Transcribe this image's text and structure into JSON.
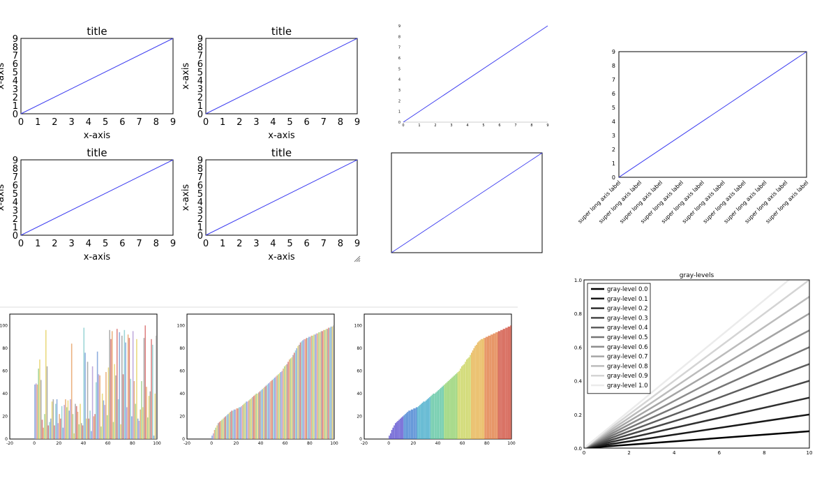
{
  "colors": {
    "line": "#3c3cf0",
    "frame": "#000000",
    "separator": "#dddddd",
    "bar_palette": [
      "#7aa0d8",
      "#9ccf8c",
      "#d86f6f",
      "#b59bd6",
      "#e6d36a",
      "#8ccfd0",
      "#e7a46b",
      "#a0a0a0"
    ],
    "spectral": [
      "#5a4fcf",
      "#3f7fd0",
      "#3fa9c9",
      "#5bc4a0",
      "#8fd06a",
      "#c9d45a",
      "#e6b24a",
      "#e07a3f",
      "#cf4b3a"
    ]
  },
  "grid_panel": {
    "titles": [
      "title",
      "title",
      "title",
      "title"
    ],
    "xlabel": "x-axis",
    "ylabel": "x-axis",
    "ticks": [
      "0",
      "1",
      "2",
      "3",
      "4",
      "5",
      "6",
      "7",
      "8",
      "9"
    ]
  },
  "axis_label": "super long axis label",
  "bar_axis": {
    "xticks": [
      "-20",
      "0",
      "20",
      "40",
      "60",
      "80",
      "100"
    ],
    "yticks": [
      "0",
      "20",
      "40",
      "60",
      "80",
      "100"
    ]
  },
  "gray_panel": {
    "title": "gray-levels",
    "xticks": [
      "0",
      "2",
      "4",
      "6",
      "8",
      "10"
    ],
    "yticks": [
      "0.0",
      "0.2",
      "0.4",
      "0.6",
      "0.8",
      "1.0"
    ],
    "legend": [
      "gray-level 0.0",
      "gray-level 0.1",
      "gray-level 0.2",
      "gray-level 0.3",
      "gray-level 0.4",
      "gray-level 0.5",
      "gray-level 0.6",
      "gray-level 0.7",
      "gray-level 0.8",
      "gray-level 0.9",
      "gray-level 1.0"
    ]
  },
  "chart_data": [
    {
      "type": "line",
      "title": "title",
      "xlabel": "x-axis",
      "ylabel": "x-axis",
      "x": [
        0,
        9
      ],
      "y": [
        0,
        9
      ],
      "xlim": [
        0,
        9
      ],
      "ylim": [
        0,
        9
      ]
    },
    {
      "type": "line",
      "title": "title",
      "xlabel": "x-axis",
      "ylabel": "x-axis",
      "x": [
        0,
        9
      ],
      "y": [
        0,
        9
      ],
      "xlim": [
        0,
        9
      ],
      "ylim": [
        0,
        9
      ]
    },
    {
      "type": "line",
      "title": "title",
      "xlabel": "x-axis",
      "ylabel": "x-axis",
      "x": [
        0,
        9
      ],
      "y": [
        0,
        9
      ],
      "xlim": [
        0,
        9
      ],
      "ylim": [
        0,
        9
      ]
    },
    {
      "type": "line",
      "title": "title",
      "xlabel": "x-axis",
      "ylabel": "x-axis",
      "x": [
        0,
        9
      ],
      "y": [
        0,
        9
      ],
      "xlim": [
        0,
        9
      ],
      "ylim": [
        0,
        9
      ]
    },
    {
      "type": "line",
      "x": [
        0,
        9
      ],
      "y": [
        0,
        9
      ],
      "xlim": [
        0,
        9
      ],
      "ylim": [
        0,
        9
      ],
      "xticks": [
        "0",
        "1",
        "2",
        "3",
        "4",
        "5",
        "6",
        "7",
        "8",
        "9"
      ],
      "yticks": [
        "0",
        "1",
        "2",
        "3",
        "4",
        "5",
        "6",
        "7",
        "8",
        "9"
      ]
    },
    {
      "type": "line",
      "x": [
        0,
        9
      ],
      "y": [
        0,
        9
      ],
      "xlim": [
        0,
        9
      ],
      "ylim": [
        0,
        9
      ],
      "axes_visible": false
    },
    {
      "type": "line",
      "x": [
        0,
        9
      ],
      "y": [
        0,
        9
      ],
      "xlim": [
        0,
        9
      ],
      "ylim": [
        0,
        9
      ],
      "yticks": [
        "0",
        "1",
        "2",
        "3",
        "4",
        "5",
        "6",
        "7",
        "8",
        "9"
      ],
      "xtick_labels": [
        "super long axis label",
        "super long axis label",
        "super long axis label",
        "super long axis label",
        "super long axis label",
        "super long axis label",
        "super long axis label",
        "super long axis label",
        "super long axis label",
        "super long axis label"
      ]
    },
    {
      "type": "bar",
      "xlim": [
        -20,
        100
      ],
      "ylim": [
        0,
        110
      ],
      "x_start": 0,
      "x_step": 1,
      "coloring": "palette",
      "values": [
        48,
        49,
        48,
        62,
        70,
        52,
        17,
        10,
        22,
        96,
        64,
        12,
        15,
        18,
        33,
        35,
        12,
        31,
        35,
        14,
        22,
        18,
        29,
        10,
        30,
        35,
        28,
        34,
        25,
        35,
        84,
        22,
        5,
        31,
        29,
        24,
        13,
        31,
        14,
        12,
        98,
        76,
        18,
        68,
        18,
        25,
        7,
        64,
        20,
        22,
        50,
        77,
        57,
        56,
        11,
        40,
        34,
        30,
        59,
        21,
        63,
        96,
        88,
        95,
        15,
        66,
        56,
        97,
        35,
        94,
        13,
        91,
        57,
        96,
        85,
        28,
        92,
        89,
        53,
        20,
        95,
        51,
        31,
        88,
        18,
        16,
        26,
        51,
        28,
        89,
        100,
        46,
        19,
        38,
        42,
        88,
        83,
        3,
        40,
        91
      ]
    },
    {
      "type": "bar",
      "xlim": [
        -20,
        100
      ],
      "ylim": [
        0,
        110
      ],
      "x_start": 0,
      "x_step": 1,
      "coloring": "palette",
      "values": [
        3,
        5,
        8,
        10,
        12,
        14,
        15,
        16,
        17,
        18,
        19,
        20,
        21,
        22,
        23,
        24,
        25,
        25,
        26,
        26,
        27,
        27,
        28,
        28,
        29,
        30,
        31,
        32,
        33,
        33,
        34,
        35,
        36,
        37,
        38,
        39,
        40,
        40,
        41,
        42,
        43,
        44,
        45,
        46,
        47,
        48,
        49,
        50,
        51,
        52,
        53,
        54,
        55,
        56,
        57,
        58,
        59,
        60,
        62,
        64,
        65,
        66,
        68,
        70,
        71,
        72,
        74,
        76,
        78,
        80,
        82,
        83,
        85,
        86,
        87,
        88,
        88,
        89,
        89,
        90,
        90,
        91,
        91,
        92,
        92,
        93,
        93,
        94,
        94,
        95,
        95,
        96,
        96,
        97,
        97,
        98,
        98,
        99,
        99,
        100
      ]
    },
    {
      "type": "bar",
      "xlim": [
        -20,
        100
      ],
      "ylim": [
        0,
        110
      ],
      "x_start": 0,
      "x_step": 1,
      "coloring": "spectral",
      "values": [
        3,
        5,
        8,
        10,
        12,
        14,
        15,
        16,
        17,
        18,
        19,
        20,
        21,
        22,
        23,
        24,
        25,
        25,
        26,
        26,
        27,
        27,
        28,
        28,
        29,
        30,
        31,
        32,
        33,
        33,
        34,
        35,
        36,
        37,
        38,
        39,
        40,
        40,
        41,
        42,
        43,
        44,
        45,
        46,
        47,
        48,
        49,
        50,
        51,
        52,
        53,
        54,
        55,
        56,
        57,
        58,
        59,
        60,
        62,
        64,
        65,
        66,
        68,
        70,
        71,
        72,
        74,
        76,
        78,
        80,
        82,
        83,
        85,
        86,
        87,
        88,
        88,
        89,
        89,
        90,
        90,
        91,
        91,
        92,
        92,
        93,
        93,
        94,
        94,
        95,
        95,
        96,
        96,
        97,
        97,
        98,
        98,
        99,
        99,
        100
      ]
    },
    {
      "type": "line",
      "title": "gray-levels",
      "xlim": [
        0,
        10
      ],
      "ylim": [
        0,
        1
      ],
      "legend_position": "top-left",
      "series": [
        {
          "name": "gray-level 0.0",
          "gray": 0.0,
          "x": [
            0,
            10
          ],
          "y": [
            0,
            0.1
          ]
        },
        {
          "name": "gray-level 0.1",
          "gray": 0.1,
          "x": [
            0,
            10
          ],
          "y": [
            0,
            0.2
          ]
        },
        {
          "name": "gray-level 0.2",
          "gray": 0.2,
          "x": [
            0,
            10
          ],
          "y": [
            0,
            0.3
          ]
        },
        {
          "name": "gray-level 0.3",
          "gray": 0.3,
          "x": [
            0,
            10
          ],
          "y": [
            0,
            0.4
          ]
        },
        {
          "name": "gray-level 0.4",
          "gray": 0.4,
          "x": [
            0,
            10
          ],
          "y": [
            0,
            0.5
          ]
        },
        {
          "name": "gray-level 0.5",
          "gray": 0.5,
          "x": [
            0,
            10
          ],
          "y": [
            0,
            0.6
          ]
        },
        {
          "name": "gray-level 0.6",
          "gray": 0.6,
          "x": [
            0,
            10
          ],
          "y": [
            0,
            0.7
          ]
        },
        {
          "name": "gray-level 0.7",
          "gray": 0.7,
          "x": [
            0,
            10
          ],
          "y": [
            0,
            0.8
          ]
        },
        {
          "name": "gray-level 0.8",
          "gray": 0.8,
          "x": [
            0,
            10
          ],
          "y": [
            0,
            0.9
          ]
        },
        {
          "name": "gray-level 0.9",
          "gray": 0.9,
          "x": [
            0,
            10
          ],
          "y": [
            0,
            1.0
          ]
        },
        {
          "name": "gray-level 1.0",
          "gray": 1.0,
          "x": [
            0,
            10
          ],
          "y": [
            0,
            1.1
          ]
        }
      ]
    }
  ]
}
